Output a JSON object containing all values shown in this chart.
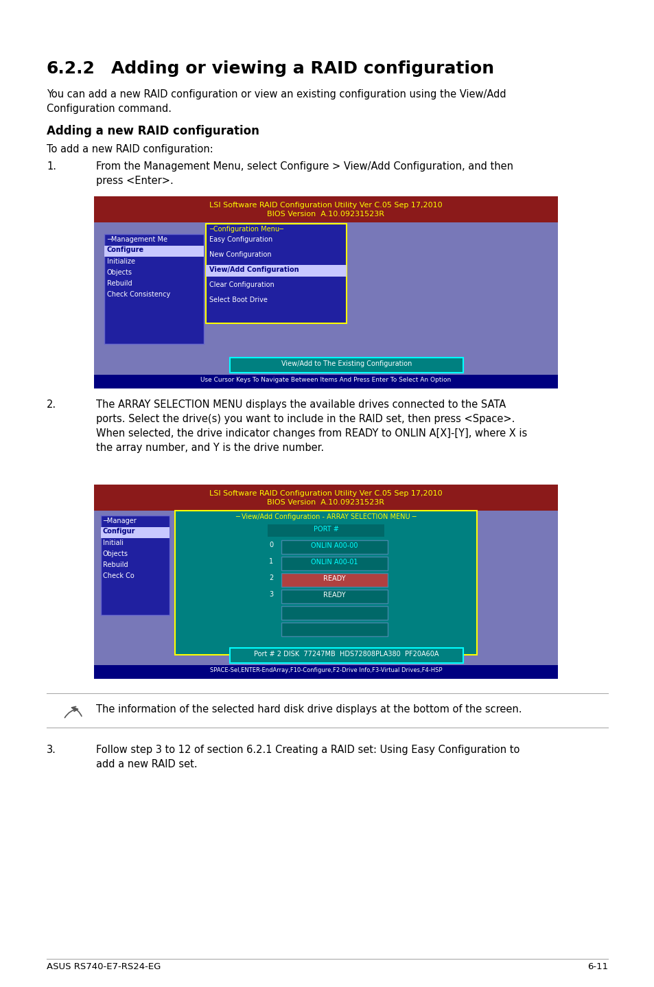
{
  "title": "6.2.2     Adding or viewing a RAID configuration",
  "subtitle1": "You can add a new RAID configuration or view an existing configuration using the View/Add\nConfiguration command.",
  "subheading": "Adding a new RAID configuration",
  "subtext": "To add a new RAID configuration:",
  "step1_num": "1.",
  "step1_text": "From the Management Menu, select Configure > View/Add Configuration, and then\npress <Enter>.",
  "step2_num": "2.",
  "step2_text": "The ARRAY SELECTION MENU displays the available drives connected to the SATA\nports. Select the drive(s) you want to include in the RAID set, then press <Space>.\nWhen selected, the drive indicator changes from READY to ONLIN A[X]-[Y], where X is\nthe array number, and Y is the drive number.",
  "step3_num": "3.",
  "step3_text": "Follow step 3 to 12 of section 6.2.1 Creating a RAID set: Using Easy Configuration to\nadd a new RAID set.",
  "note_text": "The information of the selected hard disk drive displays at the bottom of the screen.",
  "footer_left": "ASUS RS740-E7-RS24-EG",
  "footer_right": "6-11",
  "screen1_header1": "LSI Software RAID Configuration Utility Ver C.05 Sep 17,2010",
  "screen1_header2": "BIOS Version  A.10.09231523R",
  "screen1_menu_title": "─Configuration Menu─",
  "screen1_menu_items": [
    "Easy Configuration",
    "New Configuration",
    "View/Add Configuration",
    "Clear Configuration",
    "Select Boot Drive"
  ],
  "screen1_left_title": "─Management Me",
  "screen1_left_items": [
    "Configure",
    "Initialize",
    "Objects",
    "Rebuild",
    "Check Consistency"
  ],
  "screen1_bottom_box": "View/Add to The Existing Configuration",
  "screen1_status": "Use Cursor Keys To Navigate Between Items And Press Enter To Select An Option",
  "screen2_header1": "LSI Software RAID Configuration Utility Ver C.05 Sep 17,2010",
  "screen2_header2": "BIOS Version  A.10.09231523R",
  "screen2_menu_title": "─ View/Add Configuration - ARRAY SELECTION MENU ─",
  "screen2_left_title": "─Manager",
  "screen2_left_items": [
    "Configur",
    "Initiali",
    "Objects",
    "Rebuild",
    "Check Co"
  ],
  "screen2_port_header": "PORT #",
  "screen2_port_numbers": [
    "0",
    "1",
    "2",
    "3"
  ],
  "screen2_drive_items": [
    "ONLIN A00-00",
    "ONLIN A00-01",
    "READY",
    "READY"
  ],
  "screen2_bottom_box": "Port # 2 DISK  77247MB  HDS72808PLA380  PF20A60A",
  "screen2_status": "SPACE-Sel,ENTER-EndArray,F10-Configure,F2-Drive Info,F3-Virtual Drives,F4-HSP",
  "bg_color": "#ffffff",
  "screen_bg": "#7878b8",
  "screen_header_bg": "#8b1a1a",
  "screen_header_text": "#ffff00",
  "menu_bg": "#2020a0",
  "menu_text": "#ffffff",
  "menu_title_color": "#ffff00",
  "highlight_item_bg": "#c8c8ff",
  "highlight_item_text": "#000080",
  "bottom_box_bg": "#008080",
  "bottom_box_text": "#ffffff",
  "bottom_box_border": "#ffff00",
  "status_bar_bg": "#000080",
  "status_bar_text": "#ffffff",
  "ready_red_bg": "#b04040",
  "drive_panel_bg": "#008080",
  "drive_panel_border": "#ffff00",
  "drive_item_bg": "#006868",
  "drive_item_border": "#4488aa",
  "ready_teal_bg": "#006868",
  "onlin_text": "#00ffff",
  "ready_text": "#ffffff"
}
